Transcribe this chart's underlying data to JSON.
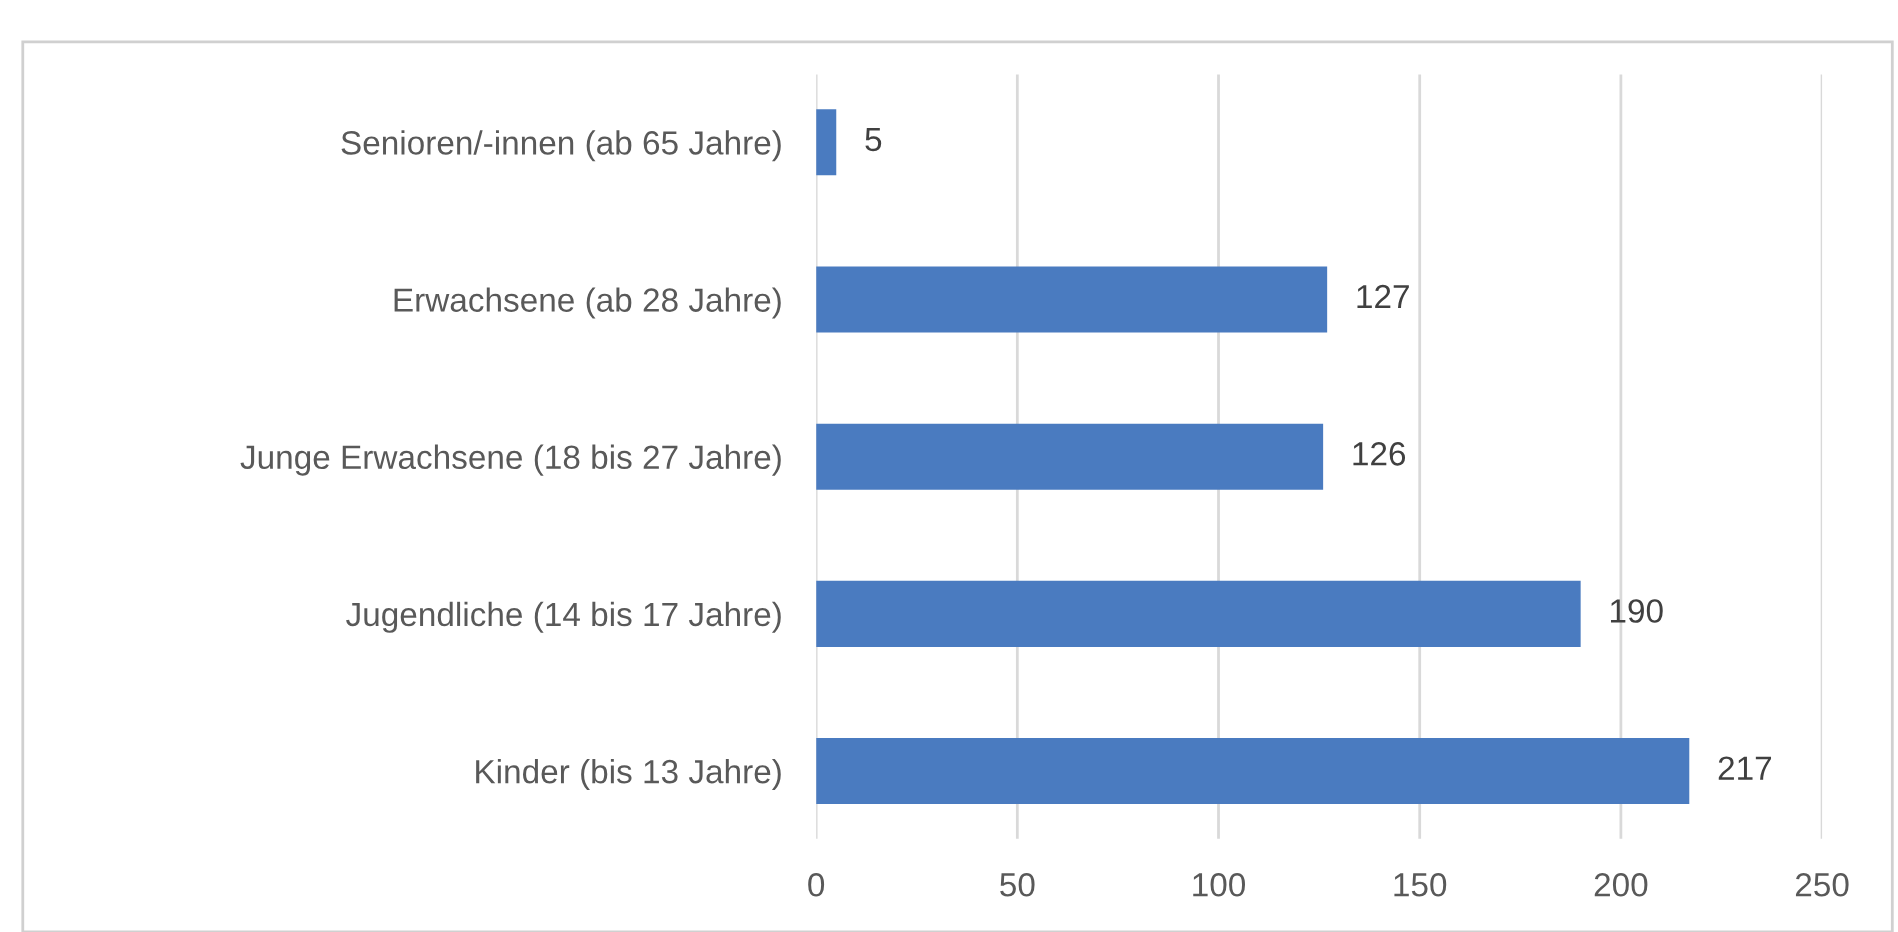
{
  "chart_data": {
    "type": "bar",
    "orientation": "horizontal",
    "categories": [
      "Senioren/-innen (ab 65 Jahre)",
      "Erwachsene (ab 28 Jahre)",
      "Junge Erwachsene (18 bis 27 Jahre)",
      "Jugendliche (14 bis 17 Jahre)",
      "Kinder (bis 13 Jahre)"
    ],
    "values": [
      5,
      127,
      126,
      190,
      217
    ],
    "color": "#4a7bc0",
    "xlim": [
      0,
      250
    ],
    "xticks": [
      0,
      50,
      100,
      150,
      200,
      250
    ],
    "grid": "x",
    "data_labels": true
  }
}
